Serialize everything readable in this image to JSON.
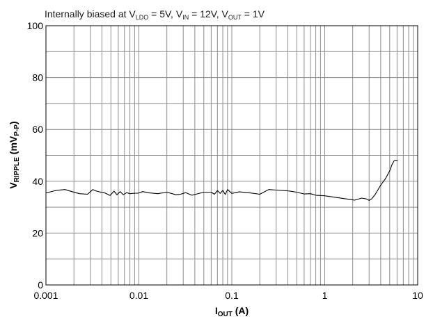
{
  "chart_data": {
    "type": "line",
    "annotation": {
      "parts": [
        {
          "text": "Internally biased at V",
          "sub": false
        },
        {
          "text": "LDO",
          "sub": true
        },
        {
          "text": " = 5V, V",
          "sub": false
        },
        {
          "text": "IN",
          "sub": true
        },
        {
          "text": " = 12V, V",
          "sub": false
        },
        {
          "text": "OUT",
          "sub": true
        },
        {
          "text": " = 1V",
          "sub": false
        }
      ]
    },
    "xlabel": {
      "main": "I",
      "sub": "OUT",
      "rest": " (A)"
    },
    "ylabel": {
      "main": "V",
      "sub": "RIPPLE",
      "rest": " (mV",
      "sub2": "P-P",
      "end": ")"
    },
    "x_scale": "log",
    "xlim": [
      0.001,
      10
    ],
    "ylim": [
      0,
      100
    ],
    "x_ticks": [
      {
        "value": 0.001,
        "label": "0.001"
      },
      {
        "value": 0.01,
        "label": "0.01"
      },
      {
        "value": 0.1,
        "label": "0.1"
      },
      {
        "value": 1,
        "label": "1"
      },
      {
        "value": 10,
        "label": "10"
      }
    ],
    "y_ticks": [
      {
        "value": 0,
        "label": "0"
      },
      {
        "value": 20,
        "label": "20"
      },
      {
        "value": 40,
        "label": "40"
      },
      {
        "value": 60,
        "label": "60"
      },
      {
        "value": 80,
        "label": "80"
      },
      {
        "value": 100,
        "label": "100"
      }
    ],
    "grid": true,
    "series": [
      {
        "color": "#000000",
        "x": [
          0.001,
          0.0013,
          0.0016,
          0.0019,
          0.0023,
          0.0028,
          0.0032,
          0.0035,
          0.0039,
          0.0043,
          0.0049,
          0.0054,
          0.0058,
          0.0063,
          0.0068,
          0.0074,
          0.008,
          0.0085,
          0.0093,
          0.0098,
          0.011,
          0.013,
          0.016,
          0.02,
          0.025,
          0.028,
          0.032,
          0.037,
          0.042,
          0.05,
          0.06,
          0.065,
          0.07,
          0.075,
          0.08,
          0.085,
          0.09,
          0.1,
          0.12,
          0.15,
          0.2,
          0.25,
          0.3,
          0.4,
          0.5,
          0.6,
          0.7,
          0.8,
          1.0,
          1.3,
          1.7,
          2.1,
          2.5,
          2.8,
          3.0,
          3.2,
          3.5,
          4.0,
          4.5,
          5.0,
          5.3,
          5.6,
          5.9,
          6.1
        ],
        "y": [
          35.5,
          36.5,
          36.8,
          36.0,
          35.2,
          35.0,
          36.8,
          36.2,
          35.8,
          35.5,
          34.5,
          36.2,
          34.8,
          36.0,
          34.8,
          35.6,
          35.2,
          35.3,
          35.4,
          35.4,
          36.0,
          35.5,
          35.2,
          35.8,
          34.8,
          35.0,
          35.6,
          34.6,
          35.1,
          35.8,
          35.8,
          35.0,
          36.4,
          35.3,
          36.5,
          34.9,
          36.8,
          35.3,
          35.9,
          35.6,
          35.0,
          36.8,
          36.6,
          36.3,
          35.8,
          35.1,
          35.2,
          34.6,
          34.4,
          33.8,
          33.2,
          32.7,
          33.5,
          33.2,
          32.6,
          33.2,
          35.0,
          38.5,
          41.0,
          44.0,
          46.5,
          48.0,
          48.1,
          47.9
        ]
      }
    ]
  }
}
